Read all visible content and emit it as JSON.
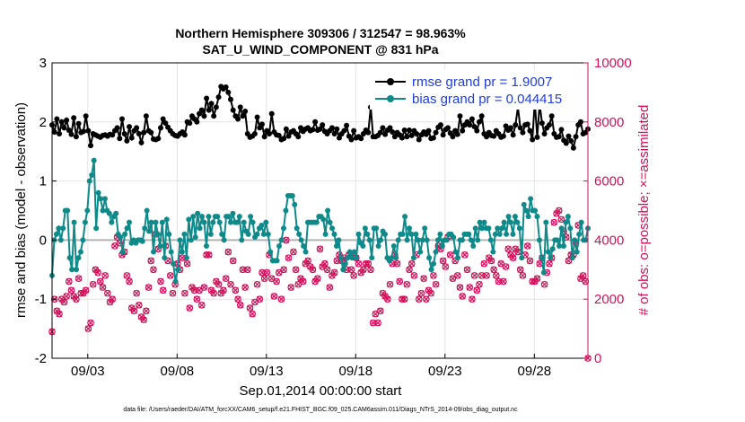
{
  "chart_data": {
    "type": "line",
    "title_line1": "Northern Hemisphere 309306 / 312547 = 98.963%",
    "title_line2": "SAT_U_WIND_COMPONENT @ 831 hPa",
    "xlabel": "Sep.01,2014 00:00:00 start",
    "ylabel_left": "rmse and bias (model - observation)",
    "ylabel_right": "# of obs: o=possible; ×=assimilated",
    "xlim": [
      1,
      31
    ],
    "ylim_left": [
      -2,
      3
    ],
    "ylim_right": [
      0,
      10000
    ],
    "x_tick_values": [
      3,
      8,
      13,
      18,
      23,
      28
    ],
    "x_tick_labels": [
      "09/03",
      "09/08",
      "09/13",
      "09/18",
      "09/23",
      "09/28"
    ],
    "y_left_ticks": [
      "-2",
      "-1",
      "0",
      "1",
      "2",
      "3"
    ],
    "y_right_ticks": [
      "0",
      "2000",
      "4000",
      "6000",
      "8000",
      "10000"
    ],
    "footer": "data file: /Users/raeder/DAI/ATM_forcXX/CAM6_setup/f.e21.FHIST_BGC.f09_025.CAM6assim.011/Diags_NTrS_2014-09/obs_diag_output.nc",
    "colors": {
      "rmse": "#000000",
      "bias": "#0f8a8a",
      "obs": "#d1105a",
      "zero": "#b3b3b3",
      "legend_text": "#1f3de0"
    },
    "series": [
      {
        "name": "rmse grand pr = 1.9007",
        "values": [
          1.95,
          1.83,
          2.05,
          1.8,
          2.0,
          1.9,
          2.03,
          1.86,
          1.79,
          2.07,
          1.75,
          1.97,
          1.82,
          1.84,
          2.1,
          1.85,
          1.6,
          1.8,
          1.78,
          1.76,
          1.74,
          1.77,
          1.78,
          1.76,
          1.79,
          1.78,
          1.85,
          1.9,
          1.72,
          2.05,
          1.8,
          1.68,
          1.92,
          1.73,
          1.85,
          1.9,
          1.8,
          1.65,
          1.82,
          2.1,
          1.85,
          1.82,
          1.71,
          1.7,
          1.72,
          1.9,
          2.05,
          1.98,
          1.91,
          1.85,
          1.8,
          1.77,
          1.76,
          1.8,
          1.83,
          1.78,
          2.0,
          1.98,
          2.1,
          2.05,
          2.0,
          2.14,
          2.2,
          2.1,
          2.4,
          2.2,
          2.31,
          2.1,
          2.25,
          2.42,
          2.6,
          2.56,
          2.59,
          2.5,
          2.38,
          2.2,
          2.1,
          2.05,
          2.25,
          2.1,
          2.18,
          1.8,
          1.74,
          1.76,
          1.8,
          2.08,
          1.9,
          1.96,
          1.75,
          1.85,
          1.8,
          2.14,
          1.83,
          1.78,
          1.77,
          1.7,
          1.72,
          1.88,
          1.76,
          1.83,
          1.85,
          1.8,
          1.75,
          1.9,
          1.84,
          1.88,
          1.9,
          1.85,
          1.87,
          2.0,
          1.86,
          1.88,
          1.95,
          1.84,
          1.8,
          1.85,
          1.9,
          1.8,
          1.88,
          1.73,
          1.8,
          1.85,
          1.94,
          1.76,
          1.7,
          1.85,
          1.73,
          1.75,
          1.72,
          1.8,
          1.86,
          1.82,
          2.25,
          1.75,
          1.75,
          1.77,
          1.82,
          1.9,
          1.79,
          1.86,
          1.9,
          1.83,
          1.75,
          1.82,
          1.78,
          1.73,
          1.86,
          1.75,
          1.86,
          1.77,
          1.85,
          1.8,
          1.7,
          1.78,
          1.83,
          1.79,
          1.85,
          1.72,
          1.73,
          1.82,
          1.91,
          1.95,
          1.78,
          1.87,
          1.9,
          1.81,
          1.75,
          1.85,
          1.79,
          2.1,
          1.85,
          1.95,
          2.0,
          1.95,
          2.05,
          1.92,
          1.85,
          2.0,
          2.1,
          1.8,
          1.75,
          1.82,
          1.77,
          1.76,
          1.85,
          1.8,
          1.74,
          1.76,
          1.93,
          1.86,
          1.9,
          1.78,
          1.95,
          2.25,
          1.9,
          1.82,
          1.95,
          1.96,
          1.85,
          1.7,
          2.34,
          1.74,
          2.3,
          1.98,
          1.8,
          1.9,
          1.95,
          2.1,
          1.8,
          1.74,
          1.75,
          1.87,
          1.69,
          1.64,
          1.76,
          1.68,
          1.56,
          1.75,
          1.95,
          2.0,
          1.8,
          1.82,
          1.88
        ]
      },
      {
        "name": "bias grand pr = 0.044415",
        "values": [
          -0.6,
          0.0,
          0.1,
          0.2,
          0.0,
          0.2,
          0.5,
          0.5,
          -0.3,
          -0.5,
          0.3,
          -0.5,
          -0.3,
          -0.2,
          0.0,
          0.3,
          0.5,
          1.0,
          1.1,
          1.35,
          0.2,
          0.8,
          0.7,
          0.5,
          0.7,
          0.5,
          0.45,
          0.3,
          0.4,
          0.45,
          0.1,
          0.05,
          -0.2,
          0.1,
          0.2,
          0.3,
          -0.05,
          0.0,
          -0.05,
          0.0,
          0.0,
          -0.02,
          0.2,
          0.5,
          0.15,
          0.3,
          -0.2,
          0.3,
          0.1,
          -0.1,
          0.3,
          -0.3,
          0.35,
          0.1,
          -0.2,
          -0.4,
          -0.7,
          -0.5,
          0.0,
          -0.2,
          0.1,
          -0.3,
          0.35,
          0.0,
          0.4,
          0.05,
          0.45,
          0.2,
          0.4,
          0.3,
          -0.1,
          0.4,
          0.1,
          0.3,
          0.4,
          0.4,
          0.3,
          0.1,
          0.0,
          0.4,
          0.4,
          0.3,
          0.45,
          0.3,
          0.3,
          0.4,
          0.0,
          0.3,
          0.15,
          0.1,
          0.4,
          0.3,
          0.05,
          0.1,
          0.2,
          0.25,
          0.1,
          0.3,
          0.1,
          -0.2,
          -0.35,
          -0.35,
          -0.35,
          -0.1,
          0.0,
          0.2,
          0.5,
          0.75,
          0.75,
          0.75,
          0.6,
          0.2,
          0.1,
          0.0,
          -0.1,
          -0.2,
          0.3,
          0.3,
          0.3,
          0.3,
          0.3,
          0.4,
          0.4,
          0.35,
          0.1,
          0.5,
          0.3,
          0.2,
          0.1,
          -0.1,
          0.0,
          -0.3,
          -0.5,
          -0.4,
          -0.3,
          -0.2,
          -0.3,
          -0.2,
          -0.3,
          0.1,
          -0.05,
          -0.1,
          0.2,
          0.1,
          0.0,
          -0.3,
          0.2,
          0.2,
          -0.1,
          0.0,
          0.15,
          0.1,
          -0.3,
          -0.35,
          -0.3,
          -0.1,
          -0.3,
          0.0,
          0.1,
          0.1,
          0.4,
          0.0,
          0.2,
          0.1,
          -0.3,
          0.1,
          0.0,
          -0.2,
          0.0,
          0.2,
          0.0,
          -0.3,
          -0.5,
          -0.4,
          -0.2,
          0.0,
          0.1,
          -0.1,
          0.0,
          0.0,
          0.1,
          0.1,
          0.05,
          -0.2,
          -0.3,
          0.0,
          0.0,
          0.1,
          0.1,
          0.1,
          0.0,
          -0.1,
          0.2,
          0.0,
          0.3,
          0.2,
          0.3,
          0.2,
          0.2,
          0.0,
          -0.2,
          0.1,
          0.2,
          0.1,
          0.2,
          0.3,
          0.1,
          0.4,
          0.3,
          0.1,
          0.4,
          0.3,
          0.2,
          -0.3,
          0.6,
          0.5,
          0.4,
          0.7,
          0.5,
          0.5,
          0.4,
          0.0,
          -0.3,
          -0.55,
          0.3,
          -0.2,
          -0.3,
          -0.15,
          0.0,
          0.0,
          -0.1,
          0.2,
          -0.1,
          0.3,
          0.4,
          0.2,
          -0.3,
          0.0,
          -0.2,
          0.1,
          0.3,
          0.0,
          0.0,
          0.2
        ]
      },
      {
        "name": "# of obs possible / assimilated",
        "axis": "right",
        "values": [
          900,
          2000,
          1600,
          1500,
          2000,
          1900,
          2100,
          2600,
          2300,
          2100,
          2000,
          2700,
          2200,
          2200,
          2300,
          1000,
          1200,
          2500,
          3000,
          2900,
          2600,
          2400,
          2800,
          2200,
          1900,
          2000,
          3800,
          4100,
          3900,
          3500,
          3600,
          2800,
          2600,
          1700,
          1600,
          2200,
          1800,
          1400,
          1300,
          1600,
          2400,
          3300,
          3000,
          4200,
          3700,
          2600,
          2300,
          3800,
          3300,
          2800,
          2200,
          2500,
          3200,
          3000,
          3400,
          2200,
          3200,
          1700,
          2400,
          2300,
          2000,
          2300,
          1800,
          2400,
          3500,
          3500,
          2300,
          2200,
          2600,
          2500,
          2200,
          2300,
          2700,
          3600,
          2500,
          3300,
          2300,
          2000,
          1800,
          3000,
          2400,
          3000,
          1700,
          1500,
          1900,
          2500,
          2000,
          2900,
          2700,
          2900,
          3500,
          2700,
          2100,
          2600,
          2900,
          2000,
          3000,
          4000,
          3400,
          2400,
          3600,
          3000,
          2500,
          2700,
          2600,
          3200,
          3300,
          3100,
          3000,
          2600,
          2700,
          3700,
          3100,
          3200,
          3000,
          2400,
          2800,
          2900,
          3300,
          3500,
          3300,
          3400,
          3000,
          3500,
          3000,
          2800,
          3400,
          3200,
          2900,
          3000,
          3200,
          3200,
          3000,
          1200,
          1500,
          1200,
          1600,
          2200,
          2100,
          2000,
          2500,
          3200,
          3500,
          3200,
          2600,
          2000,
          2000,
          2500,
          3000,
          3200,
          2800,
          3500,
          2000,
          2200,
          2700,
          2000,
          2300,
          2200,
          2800,
          2500,
          3800,
          3700,
          3300,
          3100,
          4100,
          3500,
          2700,
          3300,
          2800,
          2400,
          2100,
          3500,
          3000,
          2400,
          2000,
          2800,
          2300,
          2500,
          2800,
          3200,
          2800,
          3400,
          3300,
          3000,
          2800,
          2600,
          3200,
          2600,
          3100,
          3700,
          3500,
          3400,
          3700,
          3600,
          3000,
          2800,
          3500,
          3800,
          3300,
          2600,
          2600,
          2700,
          3200,
          3400,
          2500,
          2900,
          3200,
          3400,
          4600,
          4900,
          5000,
          4700,
          4300,
          4100,
          3300,
          3500,
          3500,
          3900,
          4500,
          2700,
          2800,
          2600,
          0
        ]
      }
    ]
  }
}
